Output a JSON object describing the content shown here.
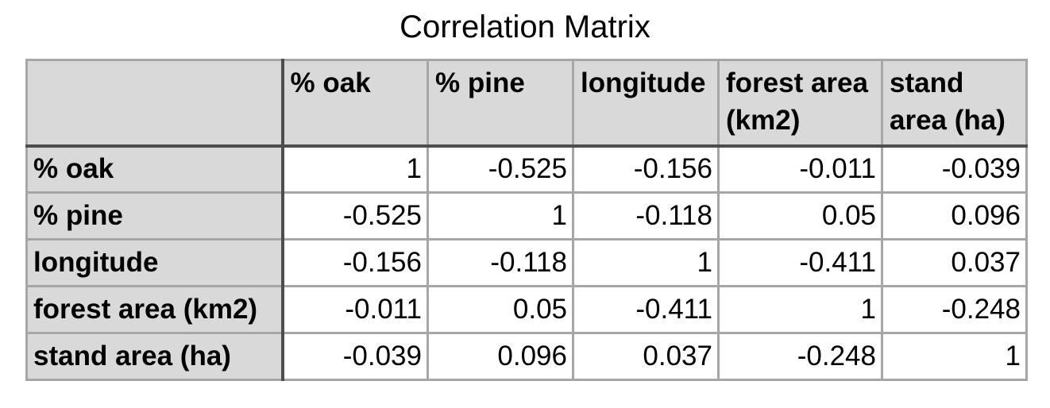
{
  "chart_data": {
    "type": "table",
    "title": "Correlation Matrix",
    "columns": [
      "% oak",
      "% pine",
      "longitude",
      "forest area (km2)",
      "stand area (ha)"
    ],
    "rows": [
      {
        "label": "% oak",
        "values": [
          "1",
          "-0.525",
          "-0.156",
          "-0.011",
          "-0.039"
        ]
      },
      {
        "label": "% pine",
        "values": [
          "-0.525",
          "1",
          "-0.118",
          "0.05",
          "0.096"
        ]
      },
      {
        "label": "longitude",
        "values": [
          "-0.156",
          "-0.118",
          "1",
          "-0.411",
          "0.037"
        ]
      },
      {
        "label": "forest area (km2)",
        "values": [
          "-0.011",
          "0.05",
          "-0.411",
          "1",
          "-0.248"
        ]
      },
      {
        "label": "stand area (ha)",
        "values": [
          "-0.039",
          "0.096",
          "0.037",
          "-0.248",
          "1"
        ]
      }
    ]
  }
}
